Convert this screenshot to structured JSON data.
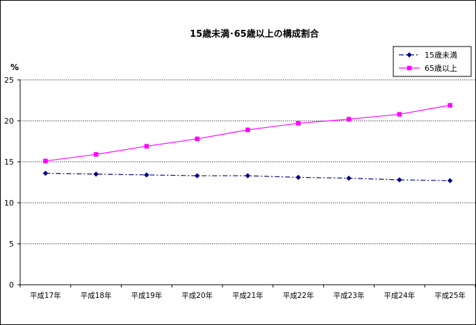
{
  "chart_data": {
    "type": "line",
    "title": "15歳未満･65歳以上の構成割合",
    "ylabel": "%",
    "xlabel": "",
    "categories": [
      "平成17年",
      "平成18年",
      "平成19年",
      "平成20年",
      "平成21年",
      "平成22年",
      "平成23年",
      "平成24年",
      "平成25年"
    ],
    "ylim": [
      0,
      25
    ],
    "yticks": [
      0,
      5,
      10,
      15,
      20,
      25
    ],
    "grid": true,
    "legend_position": "top-right",
    "series": [
      {
        "name": "15歳未満",
        "values": [
          13.6,
          13.5,
          13.4,
          13.3,
          13.3,
          13.1,
          13.0,
          12.8,
          12.7
        ],
        "color": "#000080",
        "marker": "diamond",
        "line_style": "dash-dot"
      },
      {
        "name": "65歳以上",
        "values": [
          15.1,
          15.9,
          16.9,
          17.8,
          18.9,
          19.7,
          20.2,
          20.8,
          21.9
        ],
        "color": "#FF00FF",
        "marker": "square",
        "line_style": "solid"
      }
    ]
  }
}
